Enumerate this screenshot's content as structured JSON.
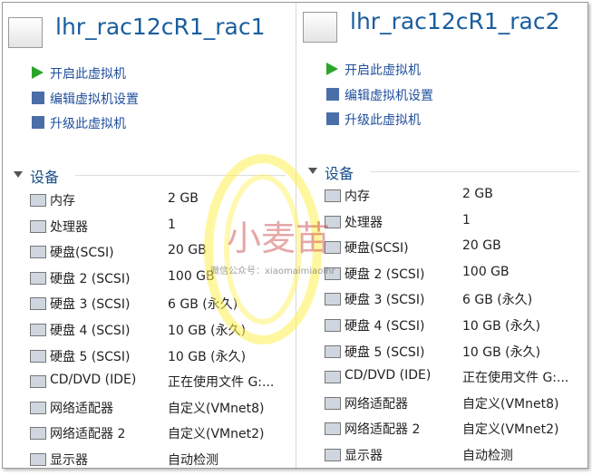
{
  "panels": [
    {
      "title": "lhr_rac12cR1_rac1",
      "actions": [
        "开启此虚拟机",
        "编辑虚拟机设置",
        "升级此虚拟机"
      ],
      "section": "设备",
      "devices": [
        {
          "name": "内存",
          "value": "2 GB"
        },
        {
          "name": "处理器",
          "value": "1"
        },
        {
          "name": "硬盘(SCSI)",
          "value": "20 GB"
        },
        {
          "name": "硬盘 2 (SCSI)",
          "value": "100 GB"
        },
        {
          "name": "硬盘 3 (SCSI)",
          "value": "6 GB (永久)"
        },
        {
          "name": "硬盘 4 (SCSI)",
          "value": "10 GB (永久)"
        },
        {
          "name": "硬盘 5 (SCSI)",
          "value": "10 GB (永久)"
        },
        {
          "name": "CD/DVD (IDE)",
          "value": "正在使用文件 G:..."
        },
        {
          "name": "网络适配器",
          "value": "自定义(VMnet8)"
        },
        {
          "name": "网络适配器 2",
          "value": "自定义(VMnet2)"
        },
        {
          "name": "显示器",
          "value": "自动检测"
        }
      ]
    },
    {
      "title": "lhr_rac12cR1_rac2",
      "actions": [
        "开启此虚拟机",
        "编辑虚拟机设置",
        "升级此虚拟机"
      ],
      "section": "设备",
      "devices": [
        {
          "name": "内存",
          "value": "2 GB"
        },
        {
          "name": "处理器",
          "value": "1"
        },
        {
          "name": "硬盘(SCSI)",
          "value": "20 GB"
        },
        {
          "name": "硬盘 2 (SCSI)",
          "value": "100 GB"
        },
        {
          "name": "硬盘 3 (SCSI)",
          "value": "6 GB (永久)"
        },
        {
          "name": "硬盘 4 (SCSI)",
          "value": "10 GB (永久)"
        },
        {
          "name": "硬盘 5 (SCSI)",
          "value": "10 GB (永久)"
        },
        {
          "name": "CD/DVD (IDE)",
          "value": "正在使用文件 G:..."
        },
        {
          "name": "网络适配器",
          "value": "自定义(VMnet8)"
        },
        {
          "name": "网络适配器 2",
          "value": "自定义(VMnet2)"
        },
        {
          "name": "显示器",
          "value": "自动检测"
        }
      ]
    }
  ],
  "watermark": {
    "title": "小麦苗",
    "subtitle": "微信公众号：xiaomaimiaolhr"
  }
}
